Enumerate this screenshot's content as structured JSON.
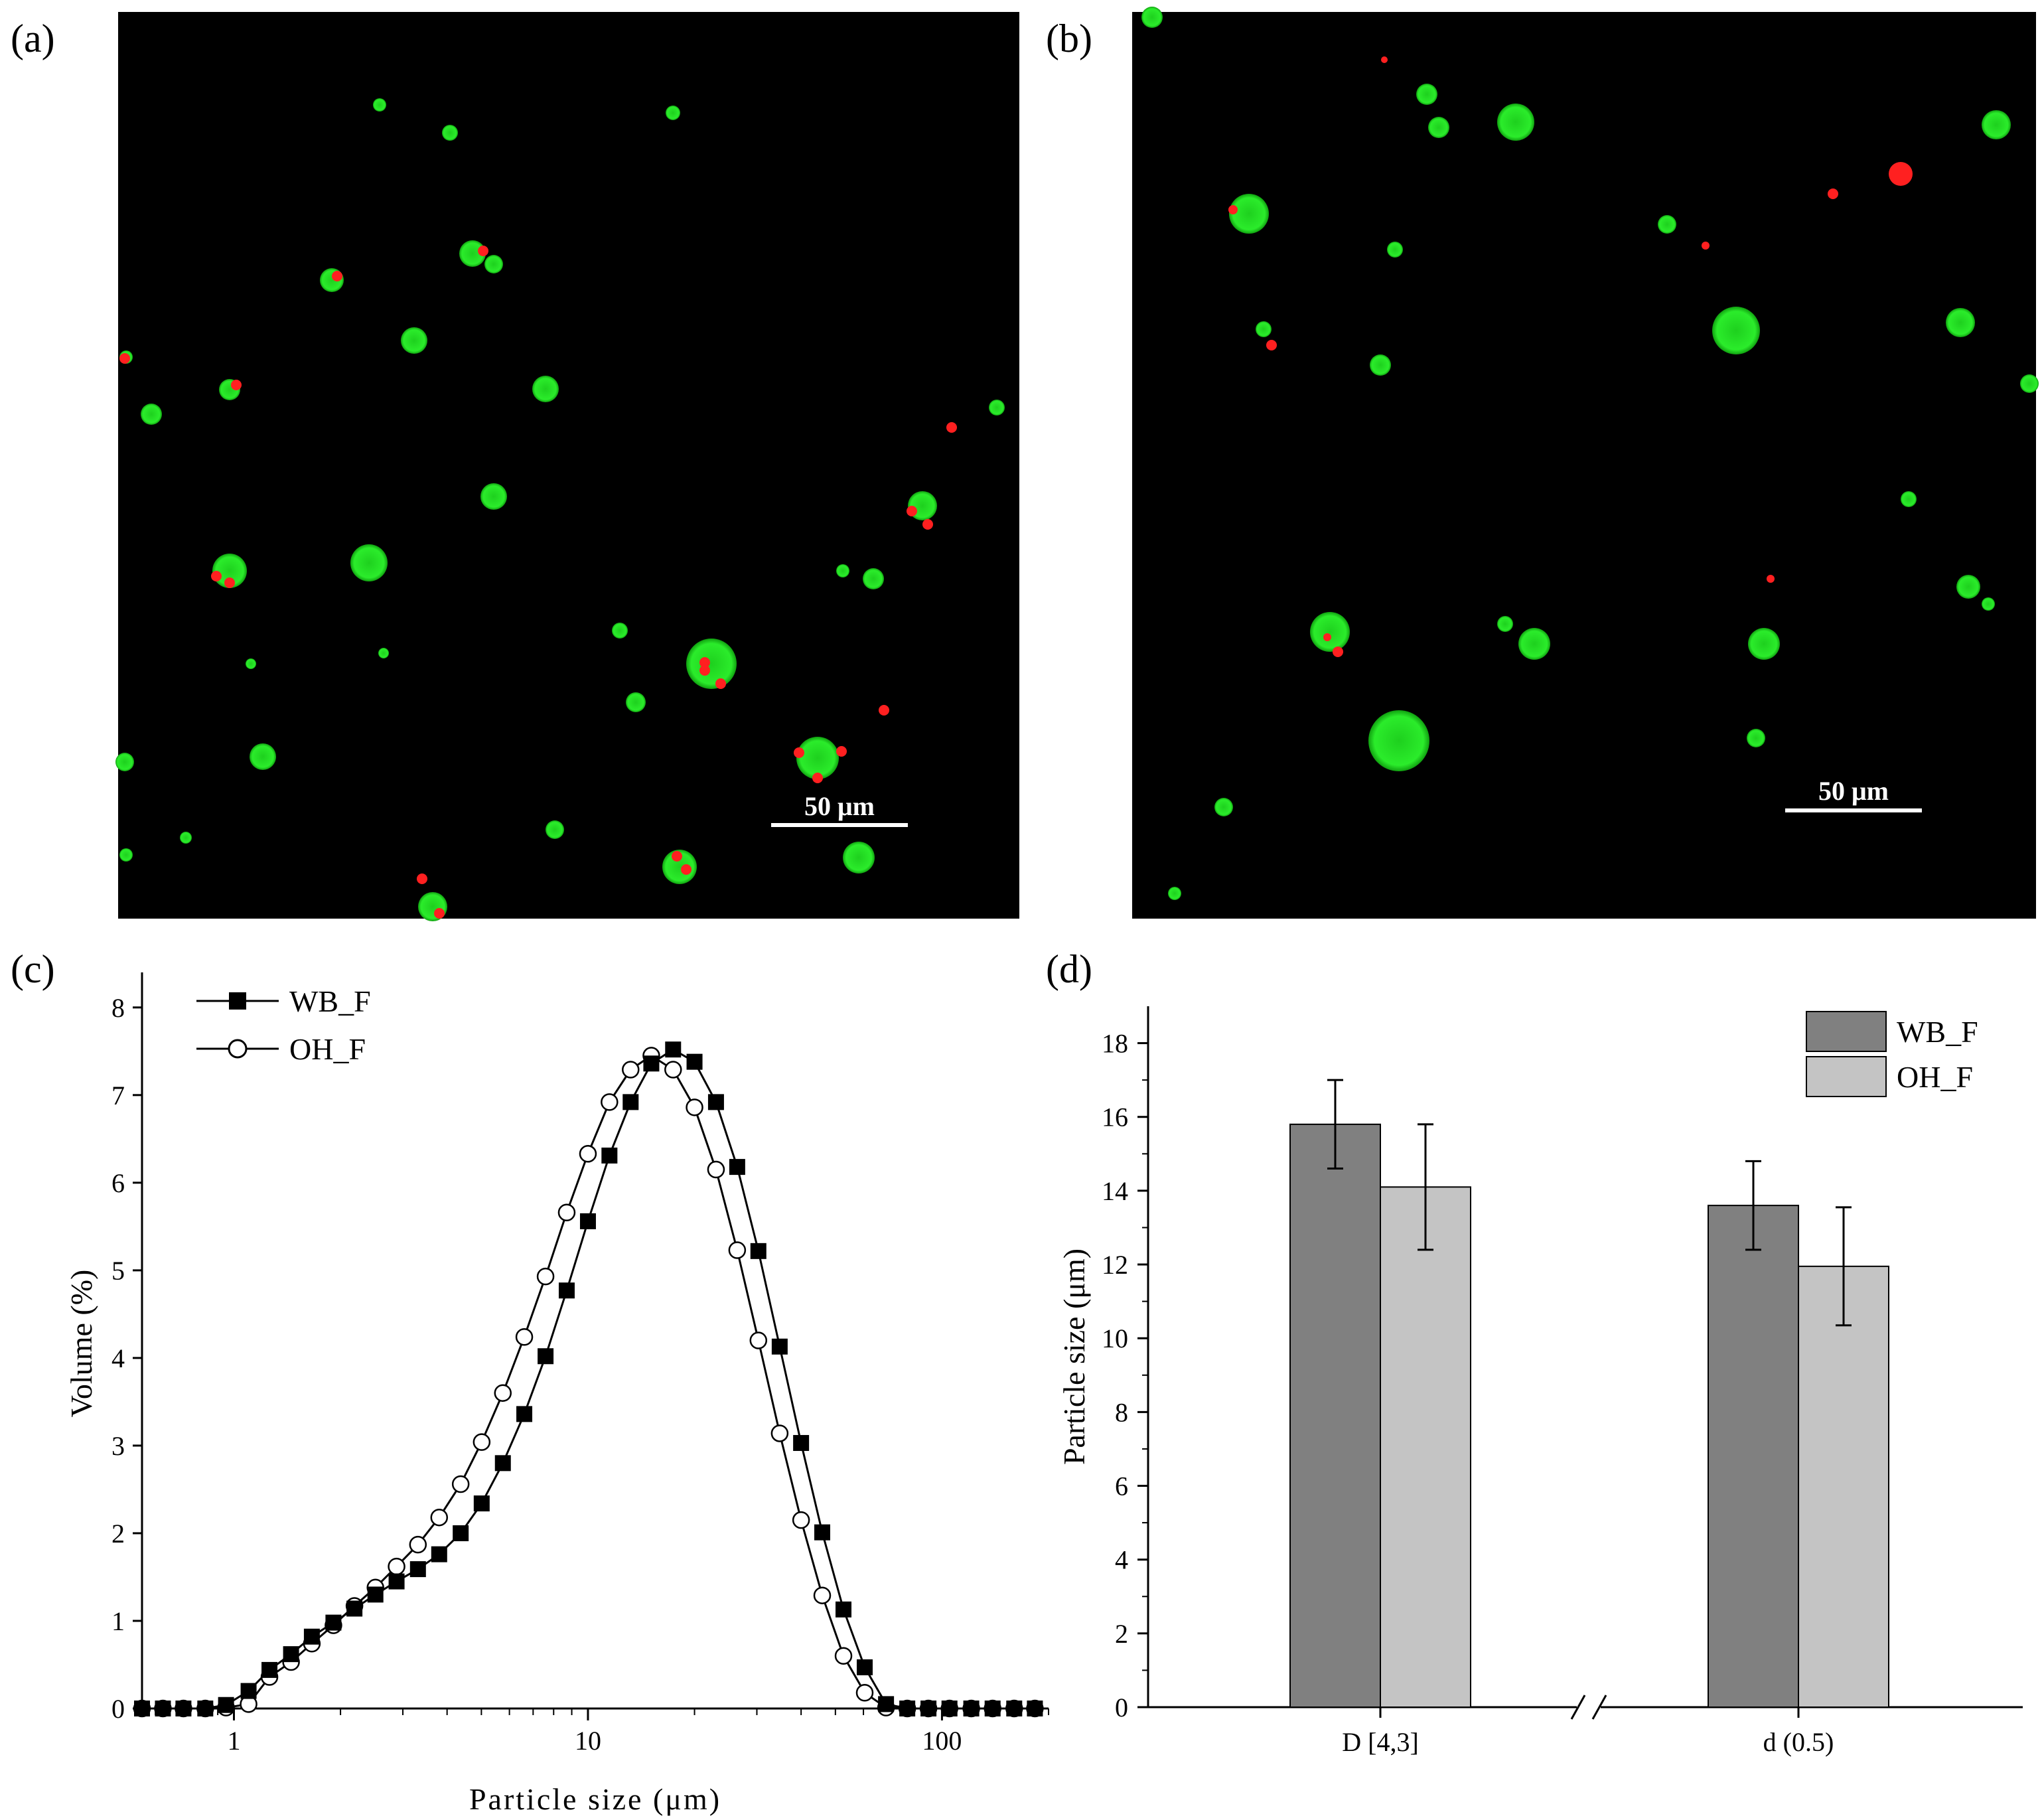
{
  "panels": {
    "a": {
      "label": "(a)",
      "scale_bar": "50 μm"
    },
    "b": {
      "label": "(b)",
      "scale_bar": "50 μm"
    },
    "c": {
      "label": "(c)"
    },
    "d": {
      "label": "(d)"
    }
  },
  "colors": {
    "micrograph_bg": "#000000",
    "droplet_green": "#22e022",
    "particle_red": "#ff2020",
    "wb_bar": "#808080",
    "oh_bar": "#c4c4c4"
  },
  "chart_data": [
    {
      "panel": "c",
      "type": "line",
      "xscale": "log",
      "xlim": [
        0.55,
        200
      ],
      "ylim": [
        0,
        8.4
      ],
      "xlabel": "Particle size (μm)",
      "ylabel": "Volume (%)",
      "xticks": [
        1,
        10,
        100
      ],
      "xtick_labels": [
        "1",
        "10",
        "100"
      ],
      "yticks": [
        0,
        1,
        2,
        3,
        4,
        5,
        6,
        7,
        8
      ],
      "legend": "top-left",
      "series": [
        {
          "name": "WB_F",
          "marker": "filled-square",
          "x": [
            0.55,
            0.63,
            0.72,
            0.83,
            0.95,
            1.1,
            1.26,
            1.45,
            1.66,
            1.91,
            2.19,
            2.51,
            2.88,
            3.31,
            3.8,
            4.37,
            5.01,
            5.75,
            6.61,
            7.59,
            8.71,
            10,
            11.5,
            13.2,
            15.1,
            17.4,
            20,
            23,
            26.4,
            30.3,
            34.8,
            40,
            45.9,
            52.7,
            60.5,
            69.5,
            79.8,
            91.6,
            105,
            121,
            139,
            160,
            183
          ],
          "y": [
            0,
            0,
            0,
            0,
            0.04,
            0.2,
            0.44,
            0.62,
            0.82,
            0.98,
            1.14,
            1.3,
            1.45,
            1.59,
            1.76,
            2.0,
            2.34,
            2.8,
            3.36,
            4.02,
            4.77,
            5.56,
            6.31,
            6.92,
            7.36,
            7.52,
            7.38,
            6.92,
            6.18,
            5.22,
            4.13,
            3.03,
            2.01,
            1.13,
            0.47,
            0.05,
            0,
            0,
            0,
            0,
            0,
            0,
            0
          ]
        },
        {
          "name": "OH_F",
          "marker": "open-circle",
          "x": [
            0.55,
            0.63,
            0.72,
            0.83,
            0.95,
            1.1,
            1.26,
            1.45,
            1.66,
            1.91,
            2.19,
            2.51,
            2.88,
            3.31,
            3.8,
            4.37,
            5.01,
            5.75,
            6.61,
            7.59,
            8.71,
            10,
            11.5,
            13.2,
            15.1,
            17.4,
            20,
            23,
            26.4,
            30.3,
            34.8,
            40,
            45.9,
            52.7,
            60.5,
            69.5,
            79.8,
            91.6,
            105,
            121,
            139,
            160,
            183
          ],
          "y": [
            0,
            0,
            0,
            0,
            0.01,
            0.05,
            0.36,
            0.53,
            0.74,
            0.95,
            1.17,
            1.38,
            1.62,
            1.87,
            2.18,
            2.56,
            3.04,
            3.6,
            4.24,
            4.93,
            5.66,
            6.33,
            6.92,
            7.29,
            7.45,
            7.29,
            6.86,
            6.15,
            5.23,
            4.2,
            3.14,
            2.15,
            1.29,
            0.6,
            0.18,
            0.01,
            0,
            0,
            0,
            0,
            0,
            0,
            0
          ]
        }
      ]
    },
    {
      "panel": "d",
      "type": "bar",
      "categories": [
        "D [4,3]",
        "d (0.5)"
      ],
      "ylabel": "Particle size (μm)",
      "ylim": [
        0,
        19
      ],
      "yticks": [
        0,
        2,
        4,
        6,
        8,
        10,
        12,
        14,
        16,
        18
      ],
      "legend": "top-right",
      "axis_break_marker": "//",
      "series": [
        {
          "name": "WB_F",
          "values": [
            15.8,
            13.6
          ],
          "errors": [
            1.2,
            1.2
          ]
        },
        {
          "name": "OH_F",
          "values": [
            14.1,
            11.95
          ],
          "errors": [
            1.7,
            1.6
          ]
        }
      ]
    }
  ]
}
